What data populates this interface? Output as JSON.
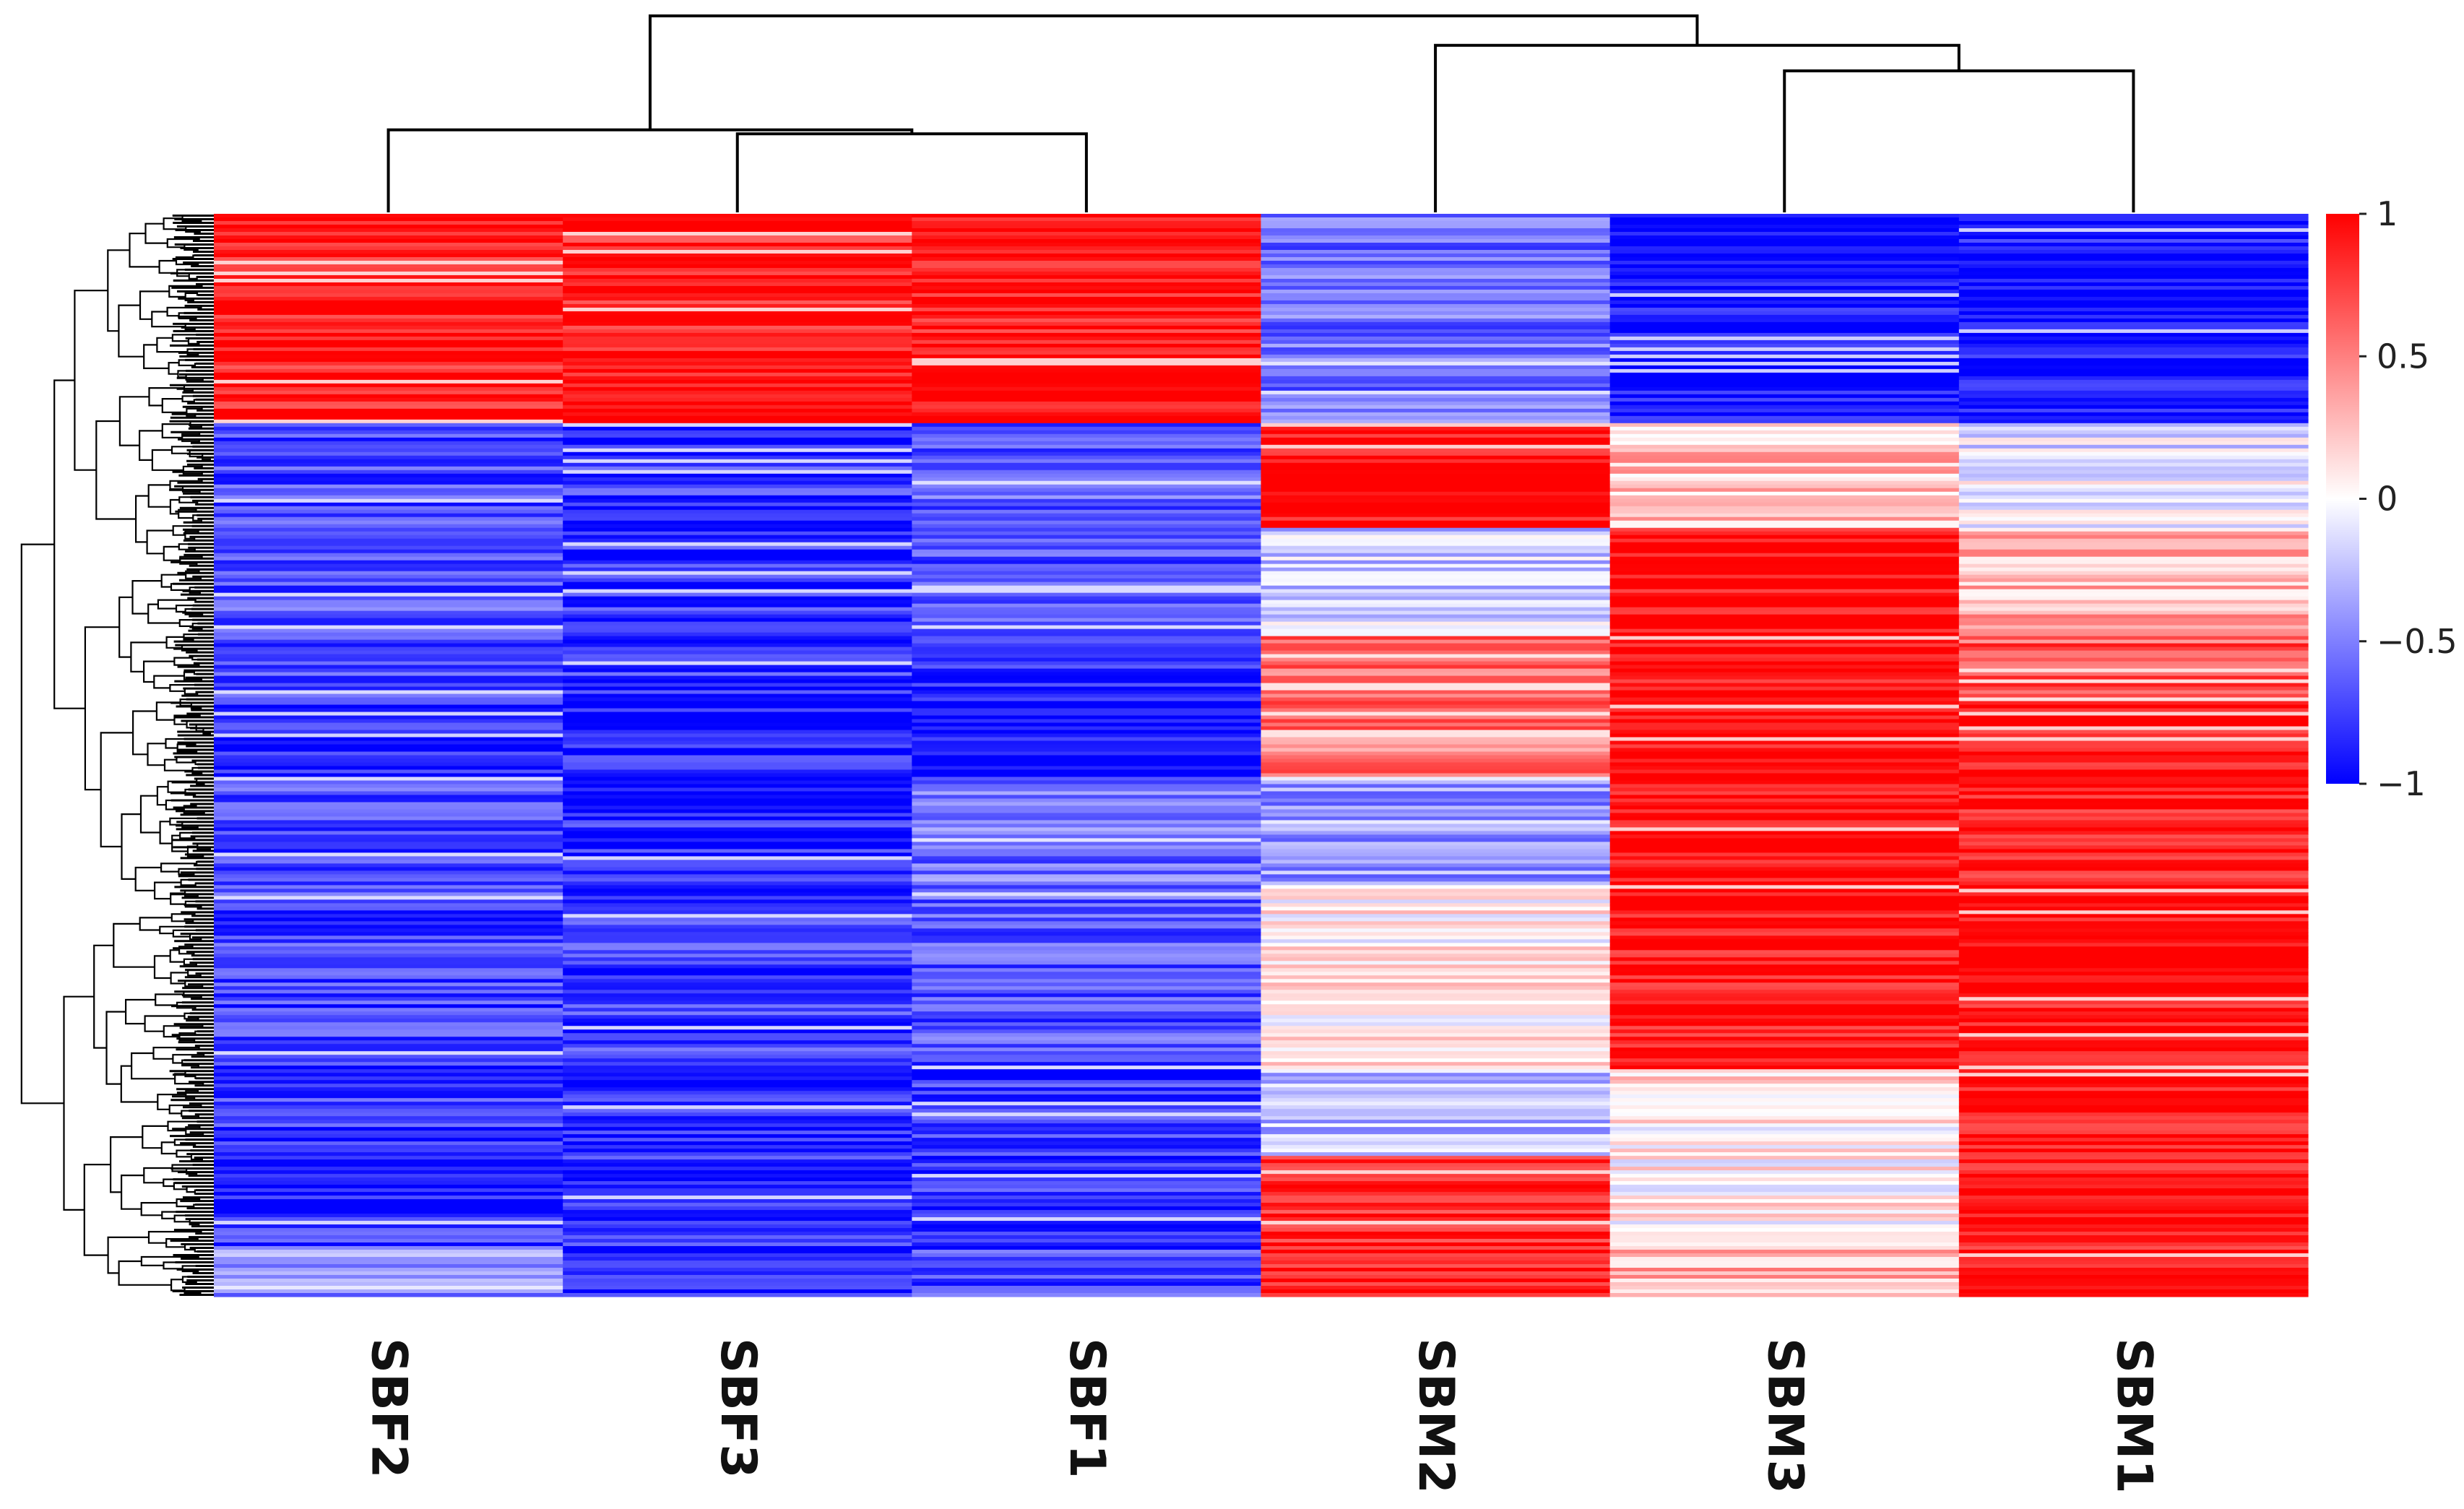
{
  "chart_data": {
    "type": "heatmap",
    "title": "",
    "columns": [
      "SBF2",
      "SBF3",
      "SBF1",
      "SBM2",
      "SBM3",
      "SBM1"
    ],
    "row_count": 300,
    "value_range": [
      -1,
      1
    ],
    "colorscale": {
      "low": "#0000ff",
      "mid": "#ffffff",
      "high": "#ff0000"
    },
    "legend": {
      "position": "right",
      "ticks": [
        {
          "value": 1,
          "label": "1"
        },
        {
          "value": 0.5,
          "label": "0.5"
        },
        {
          "value": 0,
          "label": "0"
        },
        {
          "value": -0.5,
          "label": "−0.5"
        },
        {
          "value": -1,
          "label": "−1"
        }
      ]
    },
    "column_dendrogram": [
      {
        "left": "SBF2",
        "right": [
          "SBF3",
          "SBF1"
        ],
        "height": 0.42
      },
      {
        "left": "SBF3",
        "right": "SBF1",
        "height": 0.4
      },
      {
        "left": "SBM3",
        "right": "SBM1",
        "height": 0.72
      },
      {
        "left": "SBM2",
        "right": [
          "SBM3",
          "SBM1"
        ],
        "height": 0.85
      },
      {
        "left": [
          "SBF2",
          "SBF3",
          "SBF1"
        ],
        "right": [
          "SBM2",
          "SBM3",
          "SBM1"
        ],
        "height": 1.0
      }
    ],
    "row_blocks": [
      {
        "from": 0,
        "to": 0.195,
        "values": [
          0.88,
          0.9,
          0.93,
          -0.55,
          -0.97,
          -0.95
        ]
      },
      {
        "from": 0.195,
        "to": 0.29,
        "values": [
          -0.72,
          -0.78,
          -0.62,
          0.95,
          0.25,
          -0.1
        ]
      },
      {
        "from": 0.29,
        "to": 0.39,
        "values": [
          -0.68,
          -0.82,
          -0.72,
          -0.2,
          0.97,
          0.3
        ]
      },
      {
        "from": 0.39,
        "to": 0.45,
        "values": [
          -0.72,
          -0.8,
          -0.88,
          0.55,
          0.97,
          0.65
        ]
      },
      {
        "from": 0.45,
        "to": 0.52,
        "values": [
          -0.88,
          -0.85,
          -0.93,
          0.55,
          0.97,
          0.9
        ]
      },
      {
        "from": 0.52,
        "to": 0.62,
        "values": [
          -0.72,
          -0.85,
          -0.55,
          -0.4,
          0.97,
          0.93
        ]
      },
      {
        "from": 0.62,
        "to": 0.79,
        "values": [
          -0.75,
          -0.78,
          -0.68,
          0.05,
          0.95,
          0.95
        ]
      },
      {
        "from": 0.79,
        "to": 0.87,
        "values": [
          -0.78,
          -0.86,
          -0.78,
          -0.25,
          0.1,
          0.95
        ]
      },
      {
        "from": 0.87,
        "to": 0.955,
        "values": [
          -0.8,
          -0.85,
          -0.8,
          0.85,
          0.05,
          0.92
        ]
      },
      {
        "from": 0.955,
        "to": 1.0,
        "values": [
          -0.45,
          -0.9,
          -0.75,
          0.9,
          0.3,
          0.95
        ]
      }
    ]
  }
}
